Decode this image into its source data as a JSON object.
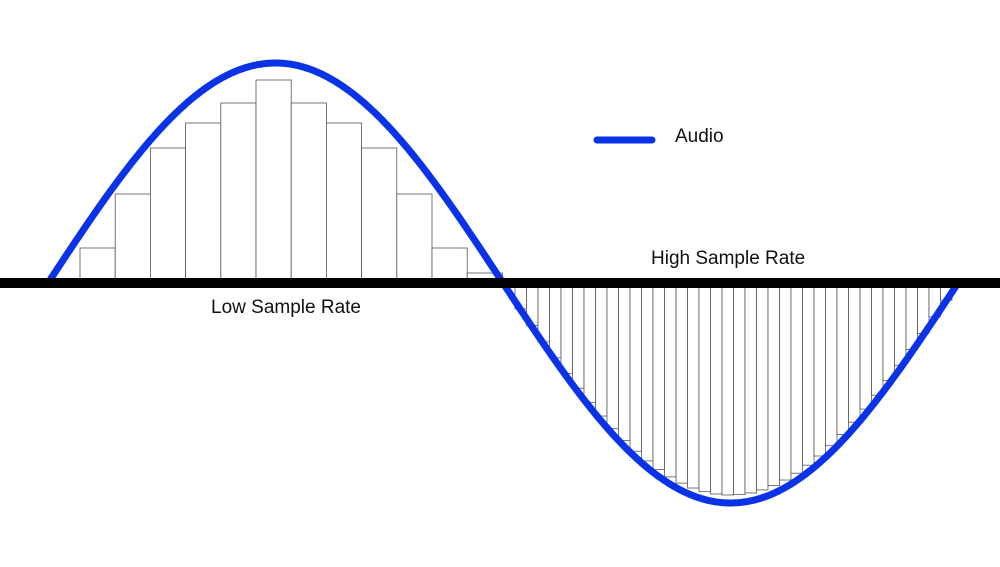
{
  "legend": {
    "label": "Audio"
  },
  "labels": {
    "high": "High Sample Rate",
    "low": "Low Sample Rate"
  }
}
